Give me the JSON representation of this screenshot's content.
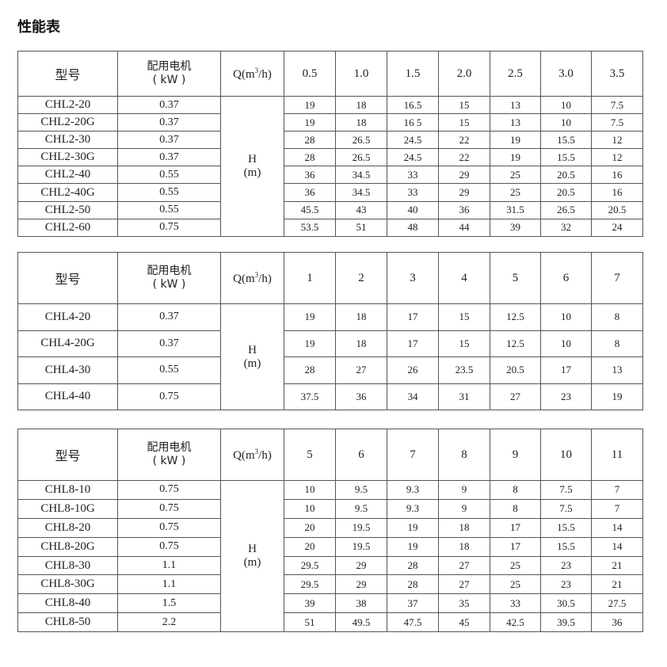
{
  "title": "性能表",
  "header": {
    "model": "型号",
    "power": "配用电机",
    "power_unit": "( kW )",
    "q_prefix": "Q(m",
    "q_sup": "3",
    "q_suffix": "/h)",
    "h": "H",
    "h_unit": "(m)"
  },
  "tables": [
    {
      "flows": [
        "0.5",
        "1.0",
        "1.5",
        "2.0",
        "2.5",
        "3.0",
        "3.5"
      ],
      "rows": [
        {
          "model": "CHL2-20",
          "power": "0.37",
          "heads": [
            "19",
            "18",
            "16.5",
            "15",
            "13",
            "10",
            "7.5"
          ]
        },
        {
          "model": "CHL2-20G",
          "power": "0.37",
          "heads": [
            "19",
            "18",
            "16 5",
            "15",
            "13",
            "10",
            "7.5"
          ]
        },
        {
          "model": "CHL2-30",
          "power": "0.37",
          "heads": [
            "28",
            "26.5",
            "24.5",
            "22",
            "19",
            "15.5",
            "12"
          ]
        },
        {
          "model": "CHL2-30G",
          "power": "0.37",
          "heads": [
            "28",
            "26.5",
            "24.5",
            "22",
            "19",
            "15.5",
            "12"
          ]
        },
        {
          "model": "CHL2-40",
          "power": "0.55",
          "heads": [
            "36",
            "34.5",
            "33",
            "29",
            "25",
            "20.5",
            "16"
          ]
        },
        {
          "model": "CHL2-40G",
          "power": "0.55",
          "heads": [
            "36",
            "34.5",
            "33",
            "29",
            "25",
            "20.5",
            "16"
          ]
        },
        {
          "model": "CHL2-50",
          "power": "0.55",
          "heads": [
            "45.5",
            "43",
            "40",
            "36",
            "31.5",
            "26.5",
            "20.5"
          ]
        },
        {
          "model": "CHL2-60",
          "power": "0.75",
          "heads": [
            "53.5",
            "51",
            "48",
            "44",
            "39",
            "32",
            "24"
          ]
        }
      ]
    },
    {
      "flows": [
        "1",
        "2",
        "3",
        "4",
        "5",
        "6",
        "7"
      ],
      "rows": [
        {
          "model": "CHL4-20",
          "power": "0.37",
          "heads": [
            "19",
            "18",
            "17",
            "15",
            "12.5",
            "10",
            "8"
          ]
        },
        {
          "model": "CHL4-20G",
          "power": "0.37",
          "heads": [
            "19",
            "18",
            "17",
            "15",
            "12.5",
            "10",
            "8"
          ]
        },
        {
          "model": "CHL4-30",
          "power": "0.55",
          "heads": [
            "28",
            "27",
            "26",
            "23.5",
            "20.5",
            "17",
            "13"
          ]
        },
        {
          "model": "CHL4-40",
          "power": "0.75",
          "heads": [
            "37.5",
            "36",
            "34",
            "31",
            "27",
            "23",
            "19"
          ]
        }
      ]
    },
    {
      "flows": [
        "5",
        "6",
        "7",
        "8",
        "9",
        "10",
        "11"
      ],
      "rows": [
        {
          "model": "CHL8-10",
          "power": "0.75",
          "heads": [
            "10",
            "9.5",
            "9.3",
            "9",
            "8",
            "7.5",
            "7"
          ]
        },
        {
          "model": "CHL8-10G",
          "power": "0.75",
          "heads": [
            "10",
            "9.5",
            "9.3",
            "9",
            "8",
            "7.5",
            "7"
          ]
        },
        {
          "model": "CHL8-20",
          "power": "0.75",
          "heads": [
            "20",
            "19.5",
            "19",
            "18",
            "17",
            "15.5",
            "14"
          ]
        },
        {
          "model": "CHL8-20G",
          "power": "0.75",
          "heads": [
            "20",
            "19.5",
            "19",
            "18",
            "17",
            "15.5",
            "14"
          ]
        },
        {
          "model": "CHL8-30",
          "power": "1.1",
          "heads": [
            "29.5",
            "29",
            "28",
            "27",
            "25",
            "23",
            "21"
          ]
        },
        {
          "model": "CHL8-30G",
          "power": "1.1",
          "heads": [
            "29.5",
            "29",
            "28",
            "27",
            "25",
            "23",
            "21"
          ]
        },
        {
          "model": "CHL8-40",
          "power": "1.5",
          "heads": [
            "39",
            "38",
            "37",
            "35",
            "33",
            "30.5",
            "27.5"
          ]
        },
        {
          "model": "CHL8-50",
          "power": "2.2",
          "heads": [
            "51",
            "49.5",
            "47.5",
            "45",
            "42.5",
            "39.5",
            "36"
          ]
        }
      ]
    }
  ]
}
